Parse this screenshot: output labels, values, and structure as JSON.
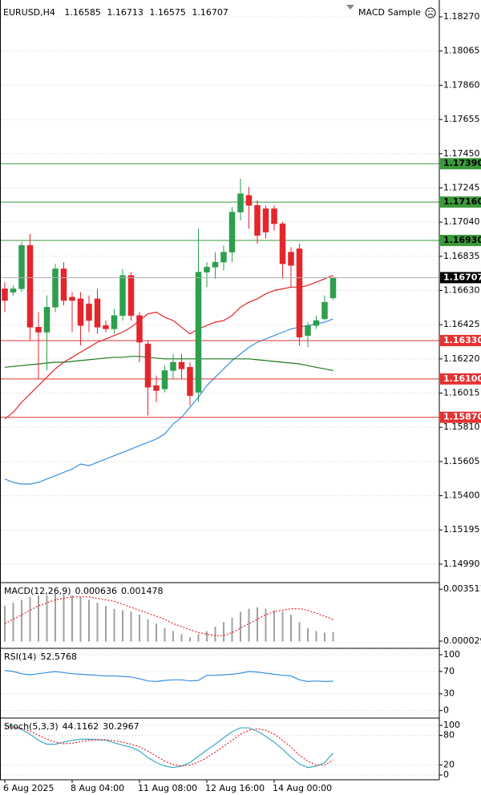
{
  "chart_data": [
    {
      "type": "candlestick",
      "title": "EURUSD,H4",
      "expert": "MACD Sample",
      "categories": [
        "6 Aug 2025",
        null,
        null,
        null,
        null,
        null,
        null,
        null,
        "8 Aug 04:00",
        null,
        null,
        null,
        null,
        null,
        null,
        null,
        "11 Aug 08:00",
        null,
        null,
        null,
        null,
        null,
        null,
        null,
        "12 Aug 16:00",
        null,
        null,
        null,
        null,
        null,
        null,
        null,
        "14 Aug 00:00",
        null,
        null,
        null,
        null,
        null,
        null,
        null
      ],
      "open": [
        1.1664,
        1.1662,
        1.1664,
        1.169,
        1.1641,
        1.1638,
        1.1653,
        1.1676,
        1.1659,
        1.1658,
        1.1655,
        1.1658,
        1.1642,
        1.164,
        1.1648,
        1.1672,
        1.1648,
        1.1631,
        1.1606,
        1.1604,
        1.1615,
        1.162,
        1.1617,
        1.1602,
        1.1674,
        1.1677,
        1.168,
        1.1686,
        1.171,
        1.172,
        1.1714,
        1.1712,
        1.1712,
        1.1703,
        1.1686,
        1.1688,
        1.1636,
        1.1642,
        1.1646,
        1.16585
      ],
      "high": [
        1.1668,
        1.1666,
        1.1692,
        1.1697,
        1.165,
        1.166,
        1.1679,
        1.168,
        1.1662,
        1.1662,
        1.166,
        1.1664,
        1.1645,
        1.1652,
        1.1676,
        1.1674,
        1.165,
        1.1633,
        1.1612,
        1.1618,
        1.1625,
        1.1625,
        1.162,
        1.17,
        1.168,
        1.1686,
        1.169,
        1.1713,
        1.173,
        1.1725,
        1.1717,
        1.1714,
        1.1714,
        1.1704,
        1.1689,
        1.1691,
        1.1644,
        1.1648,
        1.166,
        1.16713
      ],
      "low": [
        1.165,
        1.166,
        1.1662,
        1.1633,
        1.161,
        1.1615,
        1.165,
        1.1654,
        1.1638,
        1.163,
        1.1638,
        1.1637,
        1.1638,
        1.1637,
        1.1645,
        1.1645,
        1.162,
        1.1588,
        1.1596,
        1.1602,
        1.161,
        1.161,
        1.1594,
        1.1596,
        1.1665,
        1.167,
        1.1675,
        1.168,
        1.1705,
        1.17,
        1.1691,
        1.1694,
        1.1699,
        1.167,
        1.1665,
        1.163,
        1.1629,
        1.164,
        1.1645,
        1.16575
      ],
      "close": [
        1.1657,
        1.1664,
        1.169,
        1.1641,
        1.1638,
        1.1653,
        1.1676,
        1.1657,
        1.1657,
        1.1642,
        1.1645,
        1.1641,
        1.164,
        1.1648,
        1.1672,
        1.1648,
        1.1632,
        1.1605,
        1.1603,
        1.1615,
        1.162,
        1.1616,
        1.16,
        1.1674,
        1.1677,
        1.168,
        1.1686,
        1.171,
        1.1721,
        1.1714,
        1.1696,
        1.1698,
        1.1703,
        1.1679,
        1.1678,
        1.1635,
        1.1642,
        1.1645,
        1.1656,
        1.16707
      ],
      "up_color": "#2e9e4f",
      "down_color": "#e3262b",
      "current_color": "#000000",
      "series": [
        {
          "color": "#e3262b",
          "values": [
            1.1586,
            1.159,
            1.1596,
            1.1601,
            1.1606,
            1.1611,
            1.1616,
            1.162,
            1.1623,
            1.1626,
            1.1629,
            1.1632,
            1.1634,
            1.1636,
            1.1638,
            1.1641,
            1.1645,
            1.1649,
            1.165,
            1.1647,
            1.1645,
            1.1641,
            1.1637,
            1.164,
            1.1642,
            1.1644,
            1.1645,
            1.1648,
            1.1653,
            1.1656,
            1.1658,
            1.1661,
            1.1663,
            1.1664,
            1.1665,
            1.1665,
            1.1666,
            1.1668,
            1.167,
            1.1672
          ]
        },
        {
          "color": "#3b8fe0",
          "values": [
            1.155,
            1.1548,
            1.1547,
            1.1547,
            1.1548,
            1.155,
            1.1552,
            1.1554,
            1.1556,
            1.1559,
            1.1558,
            1.156,
            1.1562,
            1.1564,
            1.1566,
            1.1568,
            1.157,
            1.1572,
            1.1574,
            1.1577,
            1.1583,
            1.1587,
            1.1593,
            1.1599,
            1.1606,
            1.1611,
            1.1616,
            1.1621,
            1.1625,
            1.1629,
            1.1632,
            1.1634,
            1.1636,
            1.1638,
            1.164,
            1.1641,
            1.1642,
            1.1643,
            1.1644,
            1.1646
          ]
        },
        {
          "color": "#1f7a1f",
          "values": [
            1.1617,
            1.16175,
            1.1618,
            1.16185,
            1.1619,
            1.16195,
            1.162,
            1.162,
            1.16205,
            1.1621,
            1.16215,
            1.1622,
            1.16225,
            1.1623,
            1.1623,
            1.16235,
            1.16235,
            1.1623,
            1.16225,
            1.1622,
            1.1622,
            1.1622,
            1.1622,
            1.1622,
            1.1622,
            1.1622,
            1.1622,
            1.1622,
            1.1622,
            1.1622,
            1.16215,
            1.1621,
            1.16205,
            1.162,
            1.16195,
            1.1619,
            1.1618,
            1.1617,
            1.1616,
            1.1615
          ]
        }
      ],
      "levels": [
        {
          "value": 1.1739,
          "label": "1.17390",
          "color": "#3a9a3a"
        },
        {
          "value": 1.1716,
          "label": "1.17160",
          "color": "#3a9a3a"
        },
        {
          "value": 1.1693,
          "label": "1.16930",
          "color": "#3a9a3a"
        },
        {
          "value": 1.1633,
          "label": "1.16330",
          "color": "#e63232"
        },
        {
          "value": 1.161,
          "label": "1.16100",
          "color": "#e63232"
        },
        {
          "value": 1.1587,
          "label": "1.15870",
          "color": "#e63232"
        }
      ],
      "ylim": [
        1.14884,
        1.18371
      ],
      "yticks": [
        {
          "value": 1.1827,
          "label": "1.18270"
        },
        {
          "value": 1.18065,
          "label": "1.18065"
        },
        {
          "value": 1.1786,
          "label": "1.17860"
        },
        {
          "value": 1.17655,
          "label": "1.17655"
        },
        {
          "value": 1.1745,
          "label": "1.17450"
        },
        {
          "value": 1.17245,
          "label": "1.17245"
        },
        {
          "value": 1.1704,
          "label": "1.17040"
        },
        {
          "value": 1.16835,
          "label": "1.16835"
        },
        {
          "value": 1.1663,
          "label": "1.16630"
        },
        {
          "value": 1.16425,
          "label": "1.16425"
        },
        {
          "value": 1.1622,
          "label": "1.16220"
        },
        {
          "value": 1.16015,
          "label": "1.16015"
        },
        {
          "value": 1.1581,
          "label": "1.15810"
        },
        {
          "value": 1.15605,
          "label": "1.15605"
        },
        {
          "value": 1.154,
          "label": "1.15400"
        },
        {
          "value": 1.15195,
          "label": "1.15195"
        },
        {
          "value": 1.1499,
          "label": "1.14990"
        }
      ],
      "grid": true
    },
    {
      "type": "macd",
      "title": "MACD(12,26,9)",
      "values": [
        0.0024,
        0.0026,
        0.0028,
        0.003,
        0.0031,
        0.0031,
        0.0032,
        0.0032,
        0.0031,
        0.003,
        0.0028,
        0.0026,
        0.0024,
        0.0022,
        0.0021,
        0.002,
        0.0018,
        0.0015,
        0.0012,
        0.0009,
        0.0007,
        0.0005,
        0.0003,
        0.0005,
        0.0007,
        0.001,
        0.0013,
        0.0016,
        0.002,
        0.0022,
        0.0023,
        0.0022,
        0.0021,
        0.002,
        0.0018,
        0.0013,
        0.0009,
        0.0007,
        0.0006,
        0.000636
      ],
      "color": "#a0a0a0",
      "signal": [
        0.0012,
        0.0015,
        0.0018,
        0.0021,
        0.0024,
        0.0026,
        0.0028,
        0.0029,
        0.003,
        0.003,
        0.003,
        0.0029,
        0.0028,
        0.0027,
        0.0025,
        0.0023,
        0.0021,
        0.0019,
        0.0017,
        0.0015,
        0.0012,
        0.001,
        0.0008,
        0.0006,
        0.0005,
        0.0004,
        0.0004,
        0.0006,
        0.0009,
        0.0012,
        0.0015,
        0.0018,
        0.002,
        0.0021,
        0.0022,
        0.0022,
        0.0021,
        0.0019,
        0.0017,
        0.001478
      ],
      "signal_color": "#e3262b",
      "ylim": [
        -0.0004,
        0.0039
      ],
      "yticks": [
        0.003511,
        2.9e-05
      ],
      "grid": false
    },
    {
      "type": "line",
      "title": "RSI(14)",
      "values": [
        72,
        70,
        66,
        64,
        66,
        68,
        70,
        68,
        66,
        65,
        64,
        63,
        62,
        62,
        61,
        60,
        57,
        53,
        52,
        54,
        55,
        55,
        53,
        54,
        63,
        63,
        64,
        65,
        67,
        70,
        69,
        67,
        65,
        63,
        62,
        55,
        52,
        53,
        52,
        52.5768
      ],
      "color": "#3b8fe0",
      "ylim": [
        -12,
        110
      ],
      "yticks": [
        100,
        70,
        30,
        0
      ],
      "grid": true
    },
    {
      "type": "stochastic",
      "title": "Stoch(5,3,3)",
      "values": [
        100,
        98,
        92,
        82,
        70,
        62,
        62,
        66,
        70,
        72,
        72,
        71,
        70,
        65,
        60,
        56,
        48,
        35,
        25,
        18,
        15,
        18,
        25,
        38,
        50,
        62,
        75,
        87,
        95,
        95,
        88,
        78,
        66,
        52,
        36,
        22,
        15,
        18,
        25,
        44.1162
      ],
      "color": "#3aa8c8",
      "signal": [
        95,
        96,
        94,
        88,
        80,
        72,
        66,
        63,
        64,
        67,
        70,
        71,
        71,
        69,
        66,
        62,
        57,
        48,
        38,
        28,
        21,
        18,
        20,
        26,
        35,
        46,
        58,
        70,
        82,
        90,
        93,
        90,
        82,
        70,
        56,
        40,
        28,
        20,
        20,
        30.2967
      ],
      "signal_color": "#e3262b",
      "ylim": [
        -8,
        113
      ],
      "yticks": [
        100,
        80,
        20,
        0
      ],
      "grid": true
    }
  ]
}
